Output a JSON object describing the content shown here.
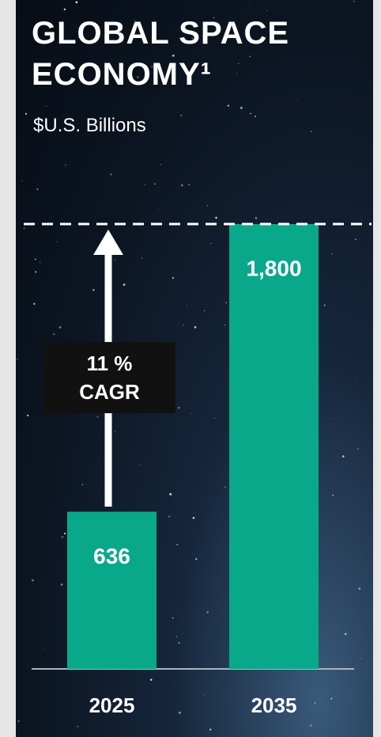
{
  "chart_data": {
    "type": "bar",
    "title": "GLOBAL SPACE ECONOMY¹",
    "subtitle": "$U.S. Billions",
    "categories": [
      "2025",
      "2035"
    ],
    "values": [
      636,
      1800
    ],
    "value_labels": [
      "636",
      "1,800"
    ],
    "color": "#0aa88b",
    "annotation": "11 % CAGR"
  }
}
